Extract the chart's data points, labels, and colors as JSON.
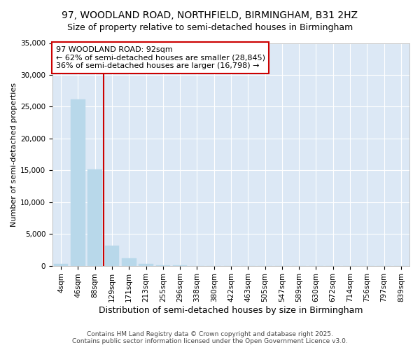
{
  "title": "97, WOODLAND ROAD, NORTHFIELD, BIRMINGHAM, B31 2HZ",
  "subtitle": "Size of property relative to semi-detached houses in Birmingham",
  "xlabel": "Distribution of semi-detached houses by size in Birmingham",
  "ylabel": "Number of semi-detached properties",
  "categories": [
    "4sqm",
    "46sqm",
    "88sqm",
    "129sqm",
    "171sqm",
    "213sqm",
    "255sqm",
    "296sqm",
    "338sqm",
    "380sqm",
    "422sqm",
    "463sqm",
    "505sqm",
    "547sqm",
    "589sqm",
    "630sqm",
    "672sqm",
    "714sqm",
    "756sqm",
    "797sqm",
    "839sqm"
  ],
  "values": [
    300,
    26100,
    15100,
    3200,
    1200,
    300,
    100,
    50,
    0,
    0,
    0,
    0,
    0,
    0,
    0,
    0,
    0,
    0,
    0,
    0,
    0
  ],
  "bar_color": "#b8d8ea",
  "bar_edge_color": "#b8d8ea",
  "property_line_x": 2.5,
  "property_line_color": "#cc0000",
  "annotation_text": "97 WOODLAND ROAD: 92sqm\n← 62% of semi-detached houses are smaller (28,845)\n36% of semi-detached houses are larger (16,798) →",
  "annotation_box_facecolor": "#ffffff",
  "annotation_box_edgecolor": "#cc0000",
  "ylim": [
    0,
    35000
  ],
  "yticks": [
    0,
    5000,
    10000,
    15000,
    20000,
    25000,
    30000,
    35000
  ],
  "fig_background": "#ffffff",
  "plot_background": "#dce8f5",
  "grid_color": "#ffffff",
  "title_fontsize": 10,
  "subtitle_fontsize": 9,
  "xlabel_fontsize": 9,
  "ylabel_fontsize": 8,
  "tick_fontsize": 7.5,
  "annotation_fontsize": 8,
  "footer_fontsize": 6.5,
  "footer": "Contains HM Land Registry data © Crown copyright and database right 2025.\nContains public sector information licensed under the Open Government Licence v3.0."
}
